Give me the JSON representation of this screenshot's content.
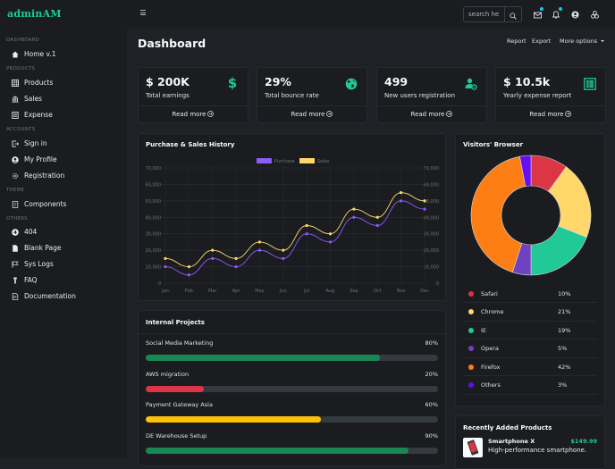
{
  "app": {
    "logo": "adminAM"
  },
  "sidebar": {
    "sections": [
      {
        "label": "Dashboard",
        "items": [
          {
            "label": "Home v.1",
            "icon": "home-icon"
          }
        ]
      },
      {
        "label": "Products",
        "items": [
          {
            "label": "Products",
            "icon": "table-icon"
          },
          {
            "label": "Sales",
            "icon": "bank-icon"
          },
          {
            "label": "Expense",
            "icon": "ledger-icon"
          }
        ]
      },
      {
        "label": "Accounts",
        "items": [
          {
            "label": "Sign in",
            "icon": "sign-in-icon"
          },
          {
            "label": "My Profile",
            "icon": "user-circle-icon"
          },
          {
            "label": "Registration",
            "icon": "gear-icon"
          }
        ]
      },
      {
        "label": "Theme",
        "items": [
          {
            "label": "Components",
            "icon": "document-icon"
          }
        ]
      },
      {
        "label": "Others",
        "items": [
          {
            "label": "404",
            "icon": "badge-4-icon"
          },
          {
            "label": "Blank Page",
            "icon": "file-icon"
          },
          {
            "label": "Sys Logs",
            "icon": "flag-icon"
          },
          {
            "label": "FAQ",
            "icon": "info-icon"
          },
          {
            "label": "Documentation",
            "icon": "file-text-icon"
          }
        ]
      }
    ]
  },
  "topbar": {
    "search_placeholder": "search here",
    "search_value": "search he",
    "icons": [
      "mail-icon",
      "bell-icon",
      "user-icon",
      "apps-icon"
    ]
  },
  "header": {
    "title": "Dashboard",
    "links": {
      "report": "Report",
      "export": "Export",
      "more": "More options"
    }
  },
  "stats": [
    {
      "value": "$ 200K",
      "label": "Total earnings",
      "icon": "dollar-icon",
      "link": "Read more"
    },
    {
      "value": "29%",
      "label": "Total bounce rate",
      "icon": "globe-icon",
      "link": "Read more"
    },
    {
      "value": "499",
      "label": "New users registration",
      "icon": "user-gear-icon",
      "link": "Read more"
    },
    {
      "value": "$ 10.5k",
      "label": "Yearly expense report",
      "icon": "spreadsheet-icon",
      "link": "Read more"
    }
  ],
  "purchase_chart": {
    "title": "Purchase & Sales History"
  },
  "chart_data": [
    {
      "type": "line",
      "title": "Purchase & Sales History",
      "categories": [
        "Jan",
        "Feb",
        "Mar",
        "Apr",
        "May",
        "Jun",
        "Jul",
        "Aug",
        "Sep",
        "Oct",
        "Nov",
        "Dec"
      ],
      "series": [
        {
          "name": "Purchase",
          "color": "#8b5cf6",
          "values": [
            10000,
            5000,
            15000,
            10000,
            20000,
            15000,
            30000,
            25000,
            40000,
            35000,
            50000,
            45000
          ]
        },
        {
          "name": "Sales",
          "color": "#ffd76a",
          "values": [
            15000,
            10000,
            20000,
            15000,
            25000,
            20000,
            35000,
            30000,
            45000,
            40000,
            55000,
            50000
          ]
        }
      ],
      "yticks": [
        "0",
        "10,000",
        "20,000",
        "30,000",
        "40,000",
        "50,000",
        "60,000",
        "70,000"
      ],
      "ylim": [
        0,
        70000
      ],
      "grid": true,
      "legend": "top-center",
      "xlabel": "",
      "ylabel": ""
    },
    {
      "type": "pie",
      "title": "Visitors' Browser",
      "categories": [
        "Safari",
        "Chrome",
        "IE",
        "Opera",
        "Firefox",
        "Others"
      ],
      "values": [
        10,
        21,
        19,
        5,
        42,
        3
      ],
      "colors": [
        "#dc3545",
        "#ffd76a",
        "#20c997",
        "#6f42c1",
        "#fd7e14",
        "#6610f2"
      ],
      "labels": [
        "10%",
        "21%",
        "19%",
        "5%",
        "42%",
        "3%"
      ]
    }
  ],
  "projects": {
    "title": "Internal Projects",
    "items": [
      {
        "name": "Social Media Marketing",
        "percent": 80,
        "label": "80%",
        "color": "#198754"
      },
      {
        "name": "AWS migration",
        "percent": 20,
        "label": "20%",
        "color": "#dc3545"
      },
      {
        "name": "Payment Gateway Asia",
        "percent": 60,
        "label": "60%",
        "color": "#ffc107"
      },
      {
        "name": "DE Warehouse Setup",
        "percent": 90,
        "label": "90%",
        "color": "#198754"
      }
    ]
  },
  "recent_products": {
    "title": "Recently Added Products",
    "items": [
      {
        "name": "Smartphone X",
        "price": "$149.99",
        "desc": "High-performance smartphone."
      }
    ]
  }
}
